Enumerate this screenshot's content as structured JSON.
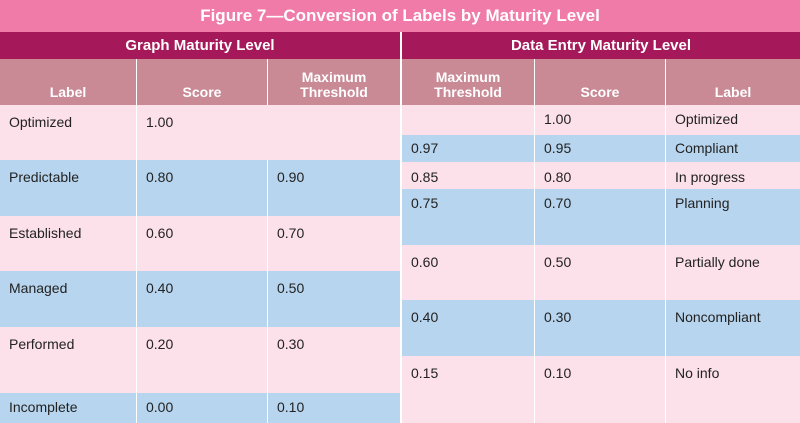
{
  "title": "Figure 7—Conversion of Labels by Maturity Level",
  "graph": {
    "heading": "Graph Maturity Level",
    "columns": {
      "label": "Label",
      "score": "Score",
      "threshold_1": "Maximum",
      "threshold_2": "Threshold"
    },
    "rows": [
      {
        "label": "Optimized",
        "score": "1.00",
        "threshold": ""
      },
      {
        "label": "Predictable",
        "score": "0.80",
        "threshold": "0.90"
      },
      {
        "label": "Established",
        "score": "0.60",
        "threshold": "0.70"
      },
      {
        "label": "Managed",
        "score": "0.40",
        "threshold": "0.50"
      },
      {
        "label": "Performed",
        "score": "0.20",
        "threshold": "0.30"
      },
      {
        "label": "Incomplete",
        "score": "0.00",
        "threshold": "0.10"
      }
    ]
  },
  "data_entry": {
    "heading": "Data Entry Maturity Level",
    "columns": {
      "threshold_1": "Maximum",
      "threshold_2": "Threshold",
      "score": "Score",
      "label": "Label"
    },
    "rows": [
      {
        "threshold": "",
        "score": "1.00",
        "label": "Optimized"
      },
      {
        "threshold": "0.97",
        "score": "0.95",
        "label": "Compliant"
      },
      {
        "threshold": "0.85",
        "score": "0.80",
        "label": "In progress"
      },
      {
        "threshold": "0.75",
        "score": "0.70",
        "label": "Planning"
      },
      {
        "threshold": "0.60",
        "score": "0.50",
        "label": "Partially done"
      },
      {
        "threshold": "0.40",
        "score": "0.30",
        "label": "Noncompliant"
      },
      {
        "threshold": "0.15",
        "score": "0.10",
        "label": "No info"
      }
    ]
  }
}
